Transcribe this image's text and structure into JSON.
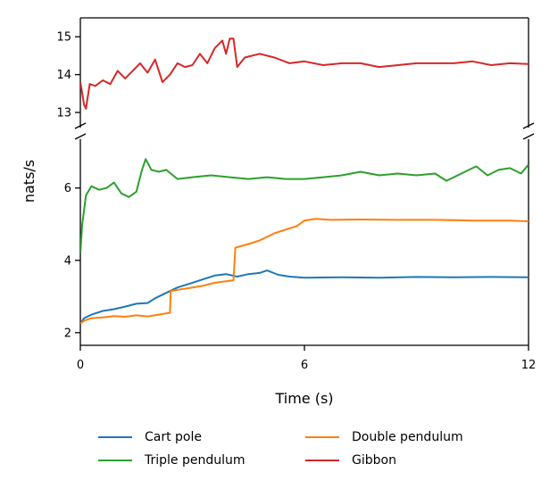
{
  "chart_data": {
    "type": "line",
    "xlabel": "Time (s)",
    "ylabel": "nats/s",
    "x_ticks": [
      "0",
      "6",
      "12"
    ],
    "xlim": [
      0,
      12
    ],
    "grid": false,
    "legend_position": "bottom",
    "broken_y_axis": true,
    "panels": [
      {
        "name": "upper",
        "ylim": [
          12.6,
          15.5
        ],
        "y_ticks": [
          "13",
          "14",
          "15"
        ]
      },
      {
        "name": "lower",
        "ylim": [
          1.65,
          7.35
        ],
        "y_ticks": [
          "2",
          "4",
          "6"
        ]
      }
    ],
    "series": [
      {
        "name": "Cart pole",
        "color": "#1f77b4",
        "panel": "lower",
        "x": [
          0,
          0.1,
          0.3,
          0.6,
          0.9,
          1.2,
          1.5,
          1.8,
          2.0,
          2.3,
          2.6,
          3.0,
          3.3,
          3.6,
          3.9,
          4.2,
          4.5,
          4.8,
          5.0,
          5.3,
          5.6,
          6.0,
          7.0,
          8.0,
          9.0,
          10.0,
          11.0,
          12.0
        ],
        "y": [
          2.25,
          2.4,
          2.5,
          2.6,
          2.65,
          2.72,
          2.8,
          2.82,
          2.95,
          3.1,
          3.25,
          3.38,
          3.48,
          3.58,
          3.62,
          3.55,
          3.62,
          3.65,
          3.72,
          3.6,
          3.55,
          3.52,
          3.53,
          3.52,
          3.54,
          3.53,
          3.54,
          3.53
        ]
      },
      {
        "name": "Double pendulum",
        "color": "#ff7f0e",
        "panel": "lower",
        "x": [
          0,
          0.1,
          0.3,
          0.6,
          0.9,
          1.2,
          1.5,
          1.8,
          2.1,
          2.4,
          2.42,
          2.7,
          3.0,
          3.3,
          3.6,
          3.9,
          4.1,
          4.15,
          4.5,
          4.8,
          5.2,
          5.5,
          5.8,
          6.0,
          6.3,
          6.7,
          7.5,
          8.5,
          9.5,
          10.5,
          11.5,
          12.0
        ],
        "y": [
          2.25,
          2.33,
          2.4,
          2.42,
          2.46,
          2.44,
          2.48,
          2.45,
          2.5,
          2.55,
          3.15,
          3.2,
          3.25,
          3.3,
          3.38,
          3.42,
          3.45,
          4.35,
          4.45,
          4.55,
          4.75,
          4.85,
          4.95,
          5.1,
          5.15,
          5.12,
          5.13,
          5.12,
          5.12,
          5.1,
          5.1,
          5.08
        ]
      },
      {
        "name": "Triple pendulum",
        "color": "#2ca02c",
        "panel": "lower",
        "x": [
          0,
          0.05,
          0.15,
          0.3,
          0.5,
          0.7,
          0.9,
          1.0,
          1.1,
          1.3,
          1.5,
          1.65,
          1.75,
          1.9,
          2.1,
          2.3,
          2.6,
          3.0,
          3.5,
          4.0,
          4.5,
          5.0,
          5.5,
          6.0,
          6.5,
          7.0,
          7.5,
          8.0,
          8.5,
          9.0,
          9.5,
          9.8,
          10.0,
          10.3,
          10.6,
          10.9,
          11.2,
          11.5,
          11.8,
          12.0
        ],
        "y": [
          4.2,
          5.0,
          5.8,
          6.05,
          5.95,
          6.0,
          6.15,
          6.0,
          5.85,
          5.75,
          5.9,
          6.5,
          6.8,
          6.5,
          6.45,
          6.5,
          6.25,
          6.3,
          6.35,
          6.3,
          6.25,
          6.3,
          6.25,
          6.25,
          6.3,
          6.35,
          6.45,
          6.35,
          6.4,
          6.35,
          6.4,
          6.2,
          6.3,
          6.45,
          6.6,
          6.35,
          6.5,
          6.55,
          6.4,
          6.65
        ]
      },
      {
        "name": "Gibbon",
        "color": "#d62728",
        "panel": "upper",
        "x": [
          0,
          0.1,
          0.15,
          0.25,
          0.4,
          0.6,
          0.8,
          1.0,
          1.2,
          1.4,
          1.6,
          1.8,
          2.0,
          2.2,
          2.4,
          2.6,
          2.8,
          3.0,
          3.2,
          3.4,
          3.6,
          3.8,
          3.9,
          4.0,
          4.1,
          4.2,
          4.4,
          4.8,
          5.2,
          5.6,
          6.0,
          6.5,
          7.0,
          7.5,
          8.0,
          8.5,
          9.0,
          9.5,
          10.0,
          10.5,
          11.0,
          11.5,
          12.0
        ],
        "y": [
          13.8,
          13.2,
          13.1,
          13.75,
          13.7,
          13.85,
          13.75,
          14.1,
          13.9,
          14.1,
          14.3,
          14.05,
          14.4,
          13.8,
          14.0,
          14.3,
          14.2,
          14.25,
          14.55,
          14.3,
          14.7,
          14.9,
          14.55,
          14.95,
          14.95,
          14.2,
          14.45,
          14.55,
          14.45,
          14.3,
          14.35,
          14.25,
          14.3,
          14.3,
          14.2,
          14.25,
          14.3,
          14.3,
          14.3,
          14.35,
          14.25,
          14.3,
          14.28
        ]
      }
    ]
  }
}
